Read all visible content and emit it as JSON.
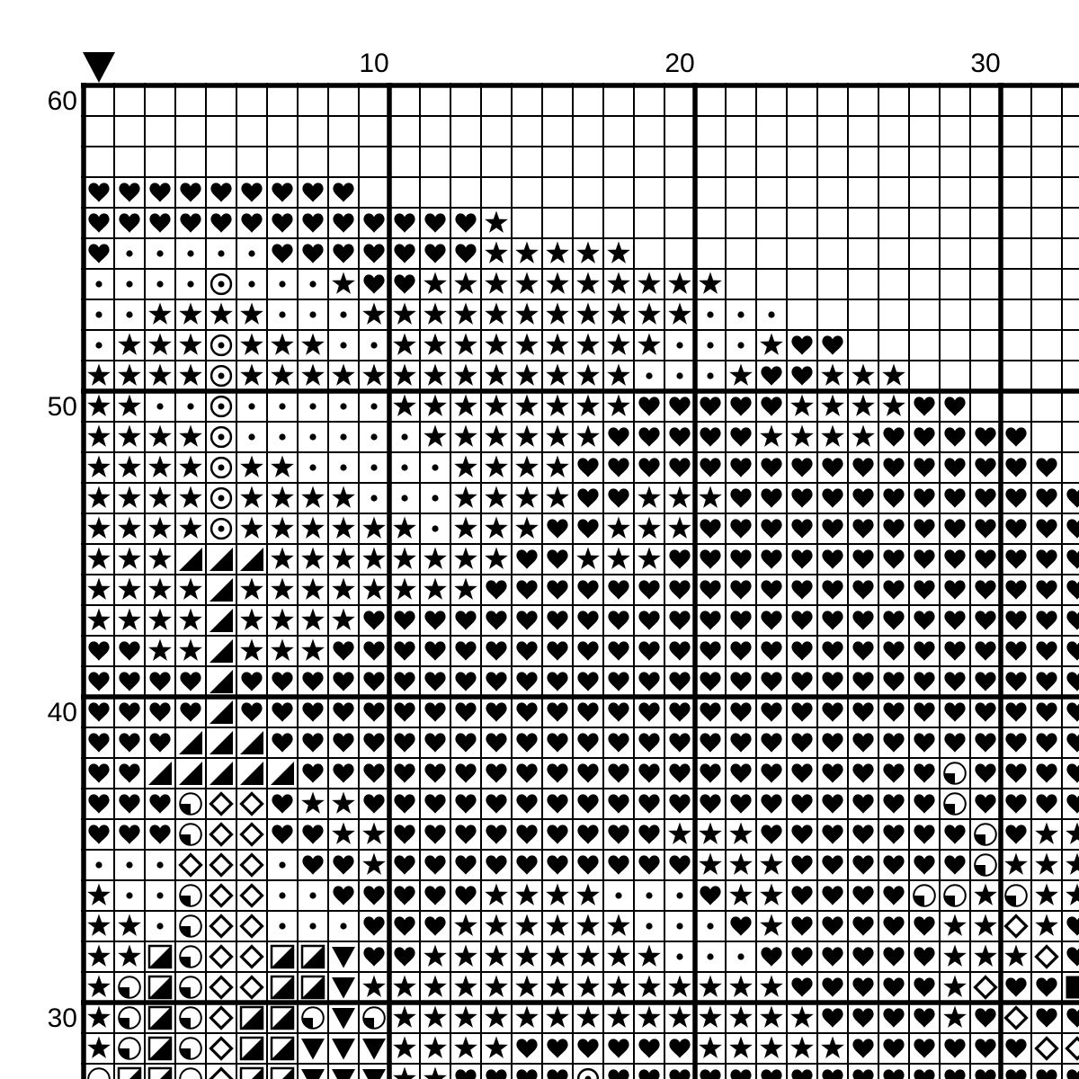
{
  "page": {
    "background_color": "#ffffff",
    "ink_color": "#000000"
  },
  "chart": {
    "type": "cross-stitch-pattern-grid",
    "marker": {
      "icon": "down-triangle-marker",
      "column": 1
    },
    "axis": {
      "column_labels": [
        {
          "text": "10",
          "col": 10
        },
        {
          "text": "20",
          "col": 20
        },
        {
          "text": "30",
          "col": 30
        }
      ],
      "row_labels": [
        {
          "text": "60",
          "row": 60
        },
        {
          "text": "50",
          "row": 50
        },
        {
          "text": "40",
          "row": 40
        },
        {
          "text": "30",
          "row": 30
        }
      ]
    },
    "grid": {
      "first_row_number": 60,
      "row_numbers_descending": true,
      "first_column_number": 1,
      "visible_rows": 33,
      "visible_columns": 33,
      "thick_line_every": 10,
      "cell_rows": [
        "                                 ",
        "                                 ",
        "                                 ",
        "HHHHHHHHH                        ",
        "HHHHHHHHHHHHHS                   ",
        "HDDDDDHHHHHHHSSSSS               ",
        "DDDDODDDSHHSSSSSSSSSS            ",
        "DDSSSSDDDSSSSSSSSSSSDDD          ",
        "DSSSOSSSDDSSSSSSSSSDDDSHH        ",
        "SSSSOSSSSSSSSSSSSSDDDSHHSSS      ",
        "SSDDODDDDDSSSSSSSSHHHHHSSSSHH    ",
        "SSSSODDDDDDSSSSSSHHHHHSSSSHHHHH  ",
        "SSSSOSSDDDDDSSSSHHHHHHHHHHHHHHHH ",
        "SSSSOSSSSDDDSSSSHHSSSHHHHHHHHHHHH",
        "SSSSOSSSSSSDSSSHHSSSHHHHHHHHHHHHH",
        "SSSTTTSSSSSSSSHHSSSHHHHHHHHHHHHHH",
        "SSSSTSSSSSSSSHHHHHHHHHHHHHHHHHHHH",
        "SSSSTSSSSHHHHHHHHHHHHHHHHHHHHHHHH",
        "HHSSTSSSHHHHHHHHHHHHHHHHHHHHHHHHH",
        "HHHHTHHHHHHHHHHHHHHHHHHHHHHHHHHHH",
        "HHHHTHHHHHHHHHHHHHHHHHHHHHHHHHHHH",
        "HHHTTTHHHHHHHHHHHHHHHHHHHHHHHHHHH",
        "HHTTTTTHHHHHHHHHHHHHHHHHHHHHQHHHH",
        "HHHQMMHSSHHHHHHHHHHHHHHHHHHHQHHHH",
        "HHHQMMHHSSHHHHHHHHHSSSHHHHHHHQHSS",
        "DDDMMMDHHSHHHHHHHHHHSSSHHHHHHQSSS",
        "SDDQMMDDHHHHHSSSSDDDHSSHHHHQQSQSS",
        "SSDQMMDDDHHHSSSSSSDDDHSHHHHHSSMSH",
        "SSBQMMBBVHHSSSSSSSSDDDHHHHHHSSSMH",
        "SQBQMMBBVSSSSSSSSSSSSSSHHHHHSMHHF",
        "SQBQMBBQVQSSSSSSSSSSSSSSHHHHSHMHH",
        "SQBQMBBVVVSSSSHHHHHHSSSSSHHHHHHMM",
        "QBBQMBBVVVSSHHHHOHHHHHHHHHHHHHHHH"
      ]
    },
    "symbols": {
      "H": "heart",
      "S": "star",
      "D": "dot",
      "O": "circled-dot",
      "T": "triangle-lower-right",
      "V": "triangle-down",
      "M": "diamond-outline",
      "Q": "circle-quarter-lower-left",
      "B": "square-half-lower-right",
      "F": "square-filled",
      " ": "empty"
    }
  }
}
